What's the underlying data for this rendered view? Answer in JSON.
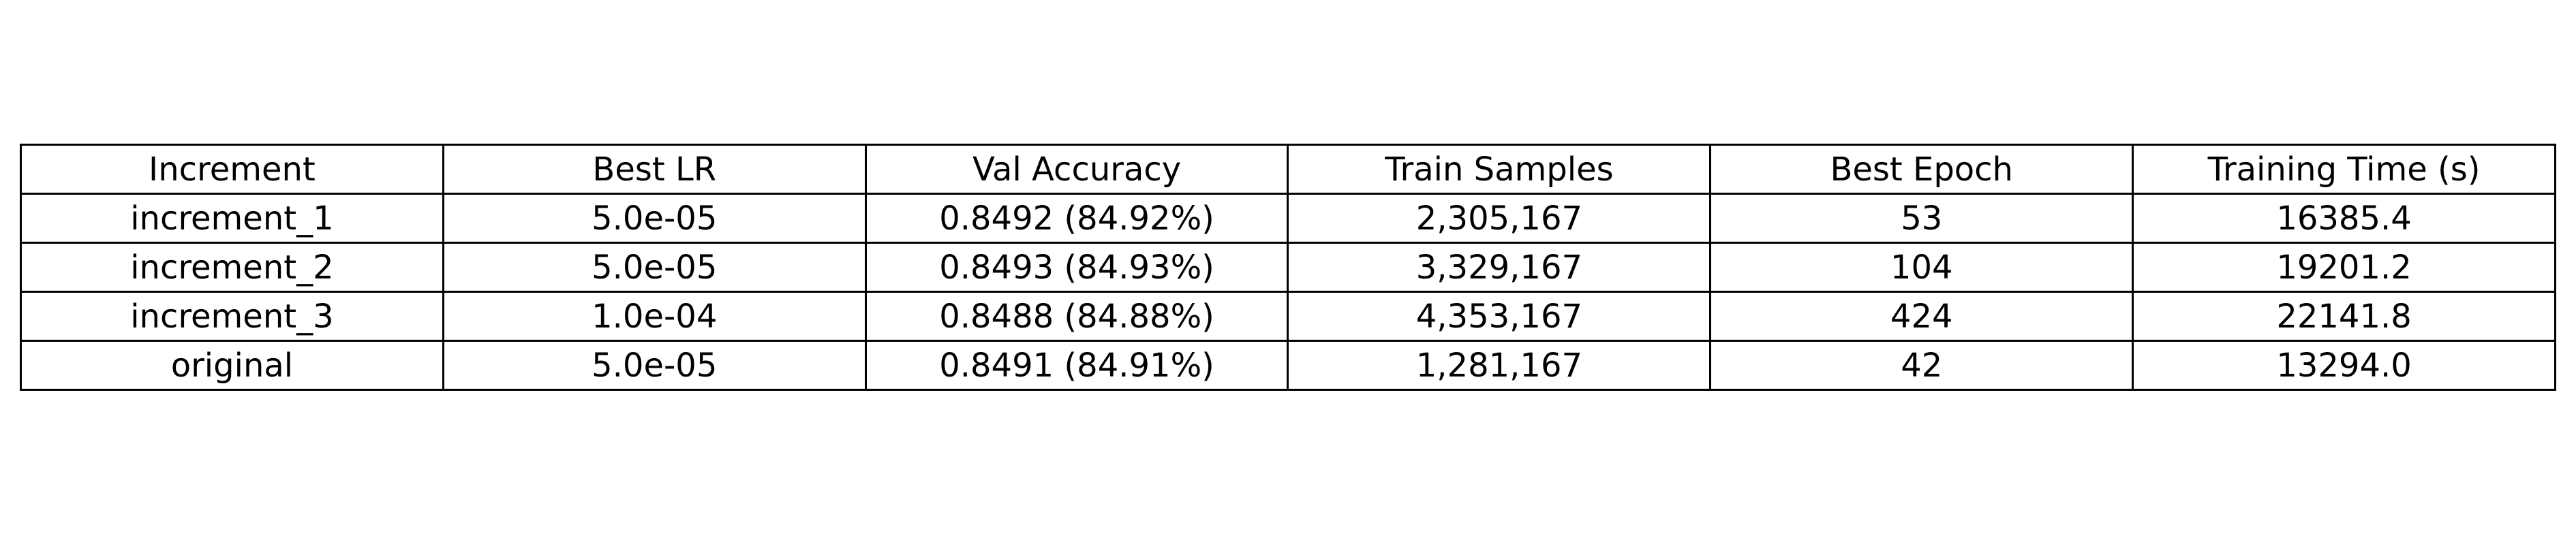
{
  "chart_data": {
    "type": "table",
    "columns": [
      "Increment",
      "Best LR",
      "Val Accuracy",
      "Train Samples",
      "Best Epoch",
      "Training Time (s)"
    ],
    "rows": [
      [
        "increment_1",
        "5.0e-05",
        "0.8492 (84.92%)",
        "2,305,167",
        "53",
        "16385.4"
      ],
      [
        "increment_2",
        "5.0e-05",
        "0.8493 (84.93%)",
        "3,329,167",
        "104",
        "19201.2"
      ],
      [
        "increment_3",
        "1.0e-04",
        "0.8488 (84.88%)",
        "4,353,167",
        "424",
        "22141.8"
      ],
      [
        "original",
        "5.0e-05",
        "0.8491 (84.91%)",
        "1,281,167",
        "42",
        "13294.0"
      ]
    ]
  }
}
